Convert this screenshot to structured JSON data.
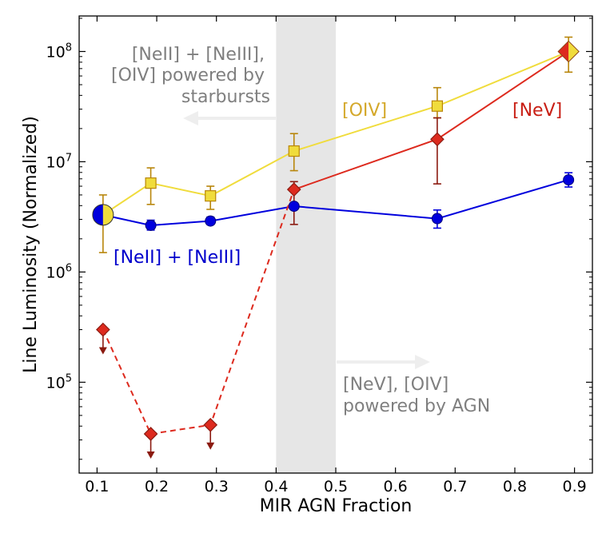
{
  "chart_data": {
    "type": "line",
    "xlabel": "MIR AGN Fraction",
    "ylabel": "Line Luminosity (Normalized)",
    "xlim": [
      0.07,
      0.93
    ],
    "ylim": [
      15000,
      210000000
    ],
    "yscale": "log",
    "xticks": [
      0.1,
      0.2,
      0.3,
      0.4,
      0.5,
      0.6,
      0.7,
      0.8,
      0.9
    ],
    "xtick_labels": [
      "0.1",
      "0.2",
      "0.3",
      "0.4",
      "0.5",
      "0.6",
      "0.7",
      "0.8",
      "0.9"
    ],
    "yticks": [
      {
        "value": 100000,
        "base": "10",
        "exp": "5"
      },
      {
        "value": 1000000,
        "base": "10",
        "exp": "6"
      },
      {
        "value": 10000000,
        "base": "10",
        "exp": "7"
      },
      {
        "value": 100000000,
        "base": "10",
        "exp": "8"
      }
    ],
    "shaded_region": {
      "x": [
        0.4,
        0.5
      ],
      "color": "#e6e6e6"
    },
    "series": [
      {
        "name": "[NeII] + [NeIII]",
        "color": "#0000dd",
        "marker": "circle",
        "x": [
          0.19,
          0.29,
          0.43,
          0.67,
          0.89
        ],
        "y": [
          2650000,
          2900000,
          3950000,
          3050000,
          6850000
        ],
        "yerr_low": [
          2400000,
          2700000,
          3950000,
          2500000,
          5900000
        ],
        "yerr_high": [
          2950000,
          3150000,
          3950000,
          3650000,
          7950000
        ]
      },
      {
        "name": "[OIV]",
        "color": "#f0dc3c",
        "edge_color": "#b8860b",
        "marker": "square",
        "x": [
          0.19,
          0.29,
          0.43,
          0.67,
          0.89
        ],
        "y": [
          6400000,
          4900000,
          12500000,
          32000000,
          100000000
        ],
        "yerr_low": [
          4100000,
          3700000,
          8300000,
          25000000,
          65000000
        ],
        "yerr_high": [
          8800000,
          6000000,
          18000000,
          47000000,
          135000000
        ]
      },
      {
        "name": "[NeV]",
        "color": "#dd2a1e",
        "edge_color": "#8b1a10",
        "marker": "diamond",
        "x": [
          0.43,
          0.67,
          0.89
        ],
        "y": [
          5600000,
          16000000,
          100000000
        ],
        "yerr_low": [
          2700000,
          6300000,
          100000000
        ],
        "yerr_high": [
          6600000,
          25000000,
          100000000
        ]
      }
    ],
    "nev_upper_limits": {
      "color": "#dd2a1e",
      "edge_color": "#8b1a10",
      "x": [
        0.11,
        0.19,
        0.29
      ],
      "y": [
        300000,
        34000,
        41000
      ]
    },
    "big_marker_low": {
      "x": 0.11,
      "y": 3300000
    },
    "low_errbar": {
      "x": 0.11,
      "low": 1500000,
      "high": 5000000
    },
    "annotations": {
      "starburst": [
        "[NeII] + [NeIII],",
        "[OIV] powered by",
        "starbursts"
      ],
      "agn": [
        "[NeV], [OIV]",
        "powered by AGN"
      ],
      "oiv": "[OIV]",
      "nev": "[NeV]",
      "ne": "[NeII] + [NeIII]"
    },
    "colors": {
      "annotation_gray": "#7f7f7f",
      "arrow_gray": "#eeeeee",
      "oiv_label": "#d4a82a",
      "nev_label": "#c81e14",
      "ne_label": "#0000cc"
    }
  }
}
